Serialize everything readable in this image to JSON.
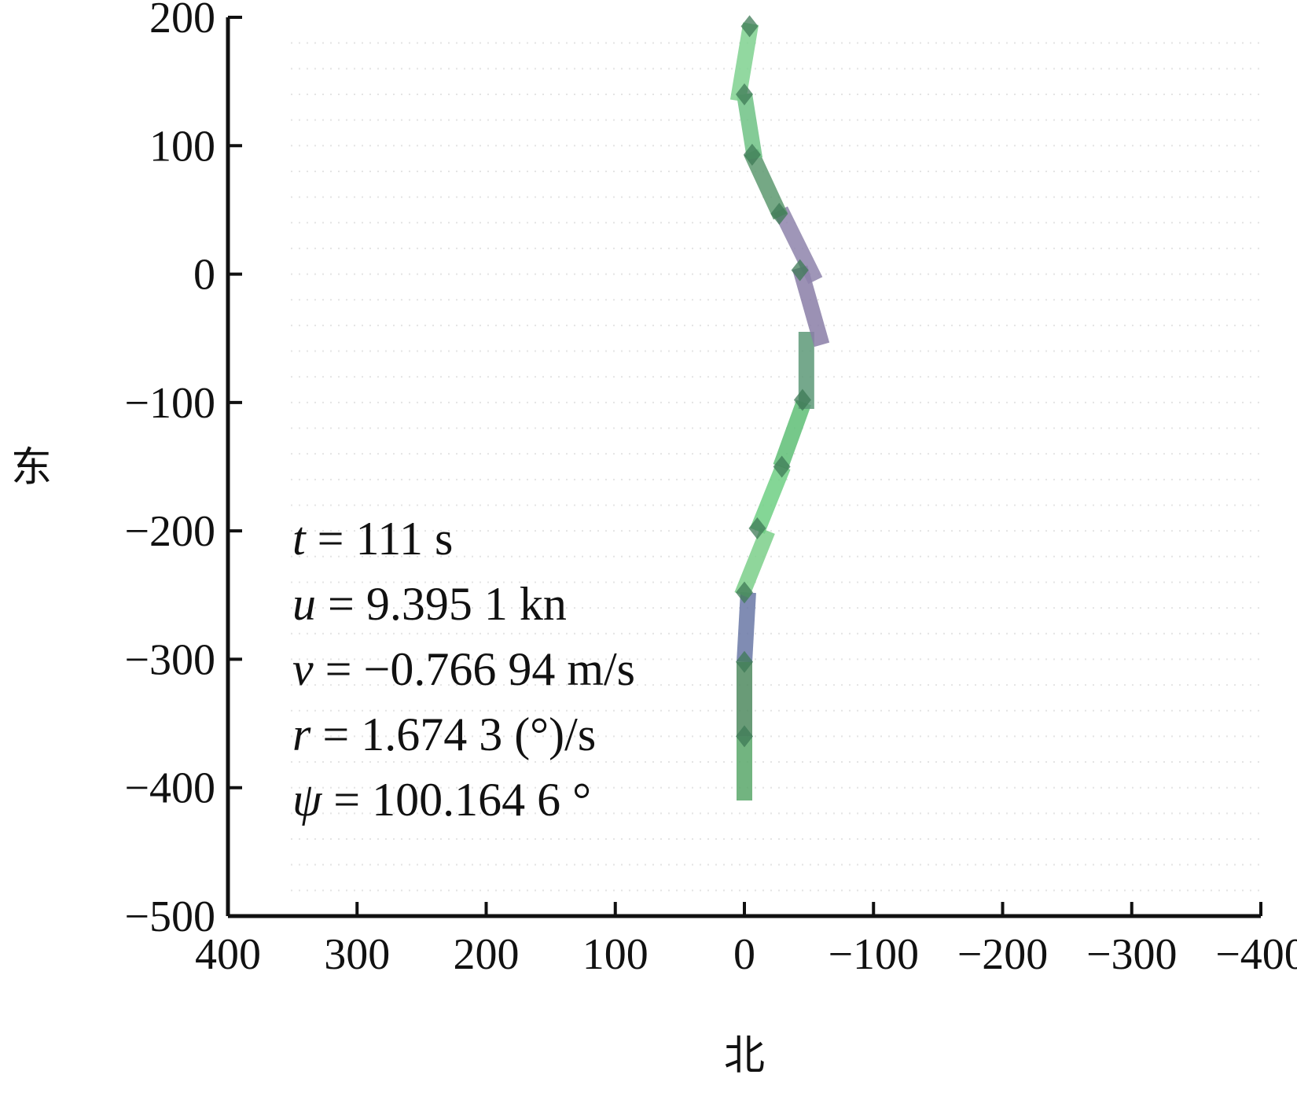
{
  "chart_data": {
    "type": "line",
    "title": "",
    "xlabel": "北",
    "ylabel": "东",
    "xlim": [
      400,
      -400
    ],
    "ylim": [
      -500,
      200
    ],
    "x_reversed": true,
    "x_ticks": [
      400,
      300,
      200,
      100,
      0,
      -100,
      -200,
      -300,
      -400
    ],
    "x_tick_labels": [
      "400",
      "300",
      "200",
      "100",
      "0",
      "−100",
      "−200",
      "−300",
      "−400"
    ],
    "y_ticks": [
      200,
      100,
      0,
      -100,
      -200,
      -300,
      -400,
      -500
    ],
    "y_tick_labels": [
      "200",
      "100",
      "0",
      "−100",
      "−200",
      "−300",
      "−400",
      "−500"
    ],
    "grid": "faint dotted",
    "series": [
      {
        "segments": [
          {
            "x": [
              0,
              0
            ],
            "y": [
              -410,
              -360
            ],
            "color": "#5aa86a"
          },
          {
            "x": [
              0,
              0
            ],
            "y": [
              -360,
              -302
            ],
            "color": "#4f8a60"
          },
          {
            "x": [
              0,
              -3
            ],
            "y": [
              -302,
              -248
            ],
            "color": "#6a78a6"
          },
          {
            "x": [
              2,
              -18
            ],
            "y": [
              -250,
              -200
            ],
            "color": "#7ccf8a"
          },
          {
            "x": [
              -10,
              -30
            ],
            "y": [
              -200,
              -150
            ],
            "color": "#6fcf84"
          },
          {
            "x": [
              -28,
              -46
            ],
            "y": [
              -150,
              -100
            ],
            "color": "#5fbf76"
          },
          {
            "x": [
              -48,
              -48
            ],
            "y": [
              -105,
              -45
            ],
            "color": "#5d9a78"
          },
          {
            "x": [
              -60,
              -43
            ],
            "y": [
              -55,
              5
            ],
            "color": "#8a7ea8"
          },
          {
            "x": [
              -55,
              -28
            ],
            "y": [
              -5,
              50
            ],
            "color": "#8f84ac"
          },
          {
            "x": [
              -28,
              -5
            ],
            "y": [
              45,
              95
            ],
            "color": "#5e9a70"
          },
          {
            "x": [
              -8,
              0
            ],
            "y": [
              90,
              140
            ],
            "color": "#6fc285"
          },
          {
            "x": [
              5,
              -5
            ],
            "y": [
              135,
              195
            ],
            "color": "#7fd290"
          }
        ],
        "markers": [
          {
            "x": 0,
            "y": -360
          },
          {
            "x": 0,
            "y": -302
          },
          {
            "x": 0,
            "y": -248
          },
          {
            "x": -10,
            "y": -198
          },
          {
            "x": -29,
            "y": -150
          },
          {
            "x": -45,
            "y": -98
          },
          {
            "x": -43,
            "y": 3
          },
          {
            "x": -27,
            "y": 47
          },
          {
            "x": -6,
            "y": 93
          },
          {
            "x": 0,
            "y": 140
          },
          {
            "x": -4,
            "y": 193
          }
        ]
      }
    ],
    "annotations": [
      {
        "symbol": "t",
        "rest": " = 111 s"
      },
      {
        "symbol": "u",
        "rest": " = 9.395 1 kn"
      },
      {
        "symbol": "v",
        "rest": " = −0.766 94 m/s"
      },
      {
        "symbol": "r",
        "rest": " = 1.674 3 (°)/s"
      },
      {
        "symbol": "ψ",
        "rest": " = 100.164 6 °"
      }
    ]
  }
}
